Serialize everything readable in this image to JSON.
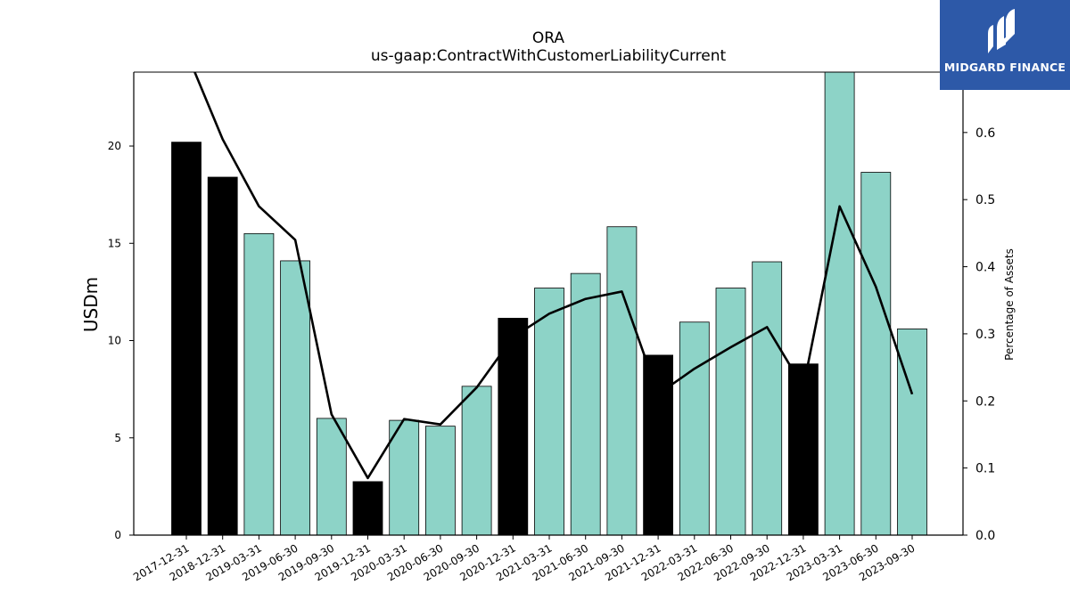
{
  "chart_data": {
    "type": "bar",
    "title": "ORA",
    "subtitle": "us-gaap:ContractWithCustomerLiabilityCurrent",
    "ylabel": "USDm",
    "ylabel_right": "Percentage of Assets",
    "ylim": [
      0,
      23.8
    ],
    "y2lim": [
      0,
      0.69
    ],
    "yticks": [
      0,
      5,
      10,
      15,
      20
    ],
    "y2ticks": [
      0.0,
      0.1,
      0.2,
      0.3,
      0.4,
      0.5,
      0.6
    ],
    "categories": [
      "2017-12-31",
      "2018-12-31",
      "2019-03-31",
      "2019-06-30",
      "2019-09-30",
      "2019-12-31",
      "2020-03-31",
      "2020-06-30",
      "2020-09-30",
      "2020-12-31",
      "2021-03-31",
      "2021-06-30",
      "2021-09-30",
      "2021-12-31",
      "2022-03-31",
      "2022-06-30",
      "2022-09-30",
      "2022-12-31",
      "2023-03-31",
      "2023-06-30",
      "2023-09-30"
    ],
    "series": [
      {
        "type": "bar",
        "values": [
          20.2,
          18.4,
          15.5,
          14.1,
          6.0,
          2.75,
          5.9,
          5.6,
          7.65,
          11.15,
          12.7,
          13.45,
          15.85,
          9.25,
          10.95,
          12.7,
          14.05,
          8.8,
          24.0,
          18.65,
          10.6
        ]
      },
      {
        "type": "line",
        "axis": "right",
        "values": [
          0.72,
          0.59,
          0.49,
          0.44,
          0.18,
          0.085,
          0.173,
          0.165,
          0.22,
          0.295,
          0.33,
          0.352,
          0.363,
          0.21,
          0.248,
          0.28,
          0.31,
          0.22,
          0.49,
          0.37,
          0.21
        ]
      }
    ],
    "bar_colors": {
      "annual": "#000000",
      "quarterly": "#8dd3c7"
    },
    "annual_flags": [
      true,
      true,
      false,
      false,
      false,
      true,
      false,
      false,
      false,
      true,
      false,
      false,
      false,
      true,
      false,
      false,
      false,
      true,
      false,
      false,
      false
    ],
    "line_color": "#000000",
    "grid": false
  },
  "logo": {
    "text": "MIDGARD FINANCE",
    "icon": "midgard-logo-icon",
    "background": "#2d59a8"
  }
}
